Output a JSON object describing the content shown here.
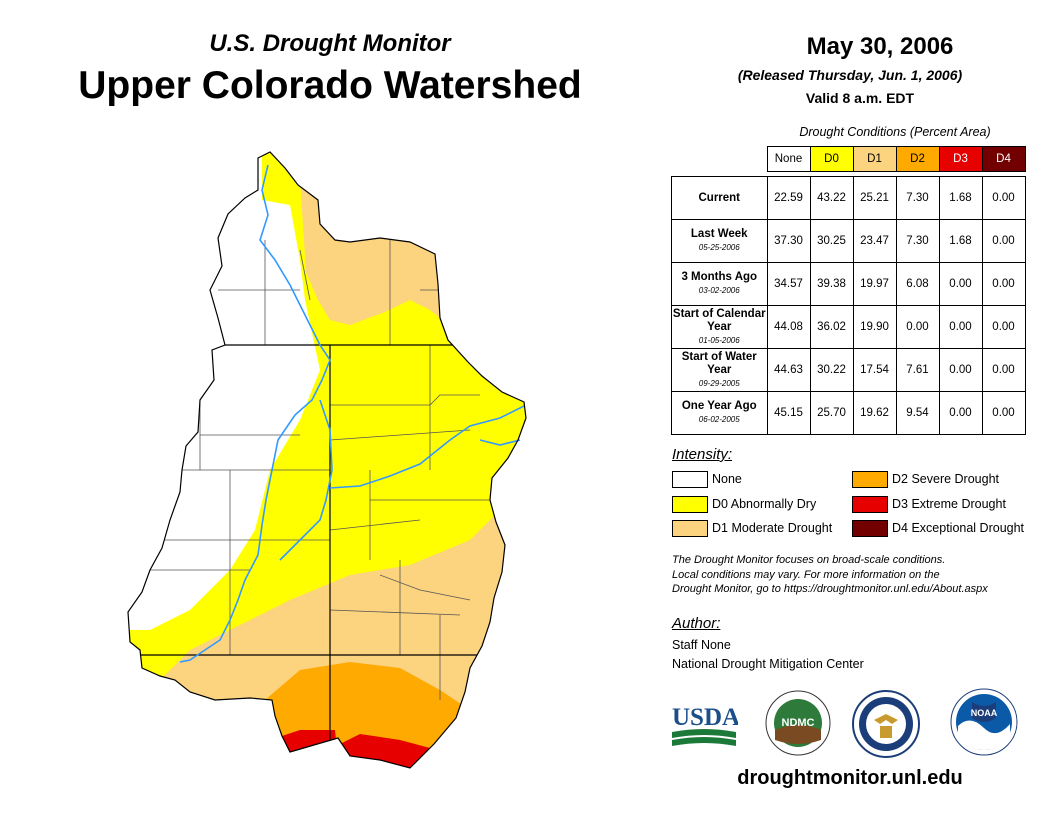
{
  "header": {
    "subtitle": "U.S. Drought Monitor",
    "title": "Upper Colorado Watershed",
    "date": "May 30, 2006",
    "released": "(Released Thursday, Jun. 1, 2006)",
    "valid": "Valid 8 a.m. EDT"
  },
  "table": {
    "caption": "Drought Conditions (Percent Area)",
    "columns": [
      "None",
      "D0",
      "D1",
      "D2",
      "D3",
      "D4"
    ],
    "column_colors": [
      "#ffffff",
      "#ffff00",
      "#fcd37f",
      "#ffaa00",
      "#e60000",
      "#730000"
    ],
    "rows": [
      {
        "label": "Current",
        "date": "",
        "values": [
          "22.59",
          "43.22",
          "25.21",
          "7.30",
          "1.68",
          "0.00"
        ]
      },
      {
        "label": "Last Week",
        "date": "05-25-2006",
        "values": [
          "37.30",
          "30.25",
          "23.47",
          "7.30",
          "1.68",
          "0.00"
        ]
      },
      {
        "label": "3 Months Ago",
        "date": "03-02-2006",
        "values": [
          "34.57",
          "39.38",
          "19.97",
          "6.08",
          "0.00",
          "0.00"
        ]
      },
      {
        "label": "Start of Calendar Year",
        "date": "01-05-2006",
        "values": [
          "44.08",
          "36.02",
          "19.90",
          "0.00",
          "0.00",
          "0.00"
        ]
      },
      {
        "label": "Start of Water Year",
        "date": "09-29-2005",
        "values": [
          "44.63",
          "30.22",
          "17.54",
          "7.61",
          "0.00",
          "0.00"
        ]
      },
      {
        "label": "One Year Ago",
        "date": "06-02-2005",
        "values": [
          "45.15",
          "25.70",
          "19.62",
          "9.54",
          "0.00",
          "0.00"
        ]
      }
    ]
  },
  "legend": {
    "title": "Intensity:",
    "items": [
      {
        "label": "None",
        "color": "#ffffff"
      },
      {
        "label": "D0 Abnormally Dry",
        "color": "#ffff00"
      },
      {
        "label": "D1 Moderate Drought",
        "color": "#fcd37f"
      },
      {
        "label": "D2 Severe Drought",
        "color": "#ffaa00"
      },
      {
        "label": "D3 Extreme Drought",
        "color": "#e60000"
      },
      {
        "label": "D4 Exceptional Drought",
        "color": "#730000"
      }
    ]
  },
  "note": {
    "line1": "The Drought Monitor focuses on broad-scale conditions.",
    "line2": "Local conditions may vary. For more information on the",
    "line3": "Drought Monitor, go to https://droughtmonitor.unl.edu/About.aspx"
  },
  "author": {
    "label": "Author:",
    "name": "Staff None",
    "org": "National Drought Mitigation Center"
  },
  "logos": {
    "usda": "USDA",
    "ndmc": "NDMC",
    "noaa": "NOAA"
  },
  "footer": {
    "website": "droughtmonitor.unl.edu"
  },
  "map": {
    "river_color": "#3399ff"
  }
}
